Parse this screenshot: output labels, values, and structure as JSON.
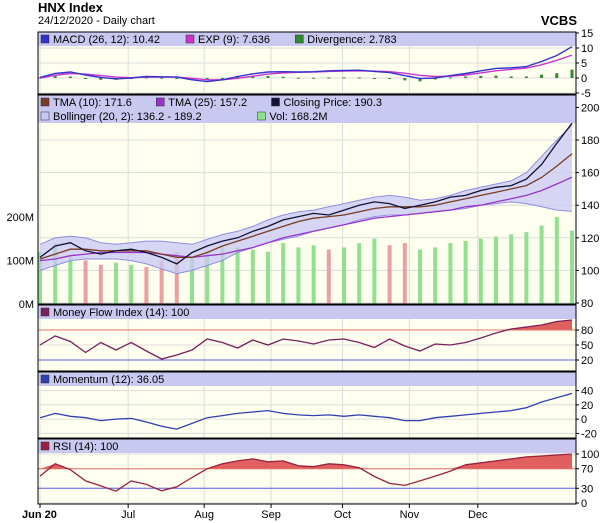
{
  "header": {
    "title": "HNX Index",
    "subtitle": "24/12/2020 - Daily chart",
    "brand": "VCBS"
  },
  "colors": {
    "legend_bg": "#c8c8f0",
    "plot_bg": "#fffff0",
    "grid": "#dcdcdc",
    "macd": "#3333cc",
    "exp": "#cc33cc",
    "divergence": "#338833",
    "tma10": "#7a3b22",
    "tma25": "#9933cc",
    "close": "#111133",
    "bollinger_fill": "#c8c8f5",
    "bollinger_line": "#8f8fe0",
    "volume": "#90e090",
    "volume_down": "#e8a0a0",
    "mfi": "#7a1f5c",
    "momentum": "#2f3fb0",
    "rsi": "#9a2040",
    "overbought_fill": "#e06060",
    "threshold_line": "#e07060",
    "oversold_line": "#6060e0"
  },
  "chart_data": [
    {
      "type": "line",
      "title": "MACD",
      "legend": [
        {
          "swatch": "macd",
          "label": "MACD (26, 12): 10.42"
        },
        {
          "swatch": "exp",
          "label": "EXP (9): 7.636"
        },
        {
          "swatch": "divergence",
          "label": "Divergence: 2.783"
        }
      ],
      "yticks": [
        15,
        10,
        5,
        0,
        -5
      ],
      "ylim": [
        -5,
        15
      ],
      "series": [
        {
          "name": "MACD (26, 12)",
          "values": [
            0.2,
            1.5,
            2.0,
            1.0,
            0.2,
            -0.3,
            0.0,
            0.5,
            0.4,
            0.3,
            -0.6,
            -1.2,
            -0.6,
            0.5,
            1.4,
            2.0,
            2.1,
            2.0,
            2.1,
            2.4,
            2.5,
            2.6,
            2.2,
            1.8,
            0.8,
            -0.2,
            0.0,
            0.8,
            1.5,
            2.4,
            3.2,
            3.4,
            3.8,
            5.5,
            7.5,
            10.42
          ]
        },
        {
          "name": "EXP (9)",
          "values": [
            0.0,
            0.9,
            1.5,
            1.3,
            0.8,
            0.3,
            0.1,
            0.3,
            0.3,
            0.3,
            -0.1,
            -0.6,
            -0.6,
            -0.1,
            0.6,
            1.3,
            1.7,
            1.9,
            2.0,
            2.2,
            2.3,
            2.4,
            2.3,
            2.1,
            1.6,
            0.9,
            0.5,
            0.6,
            1.0,
            1.7,
            2.4,
            2.9,
            3.3,
            4.4,
            5.9,
            7.636
          ]
        },
        {
          "name": "Divergence",
          "values": [
            0.2,
            0.6,
            0.5,
            -0.3,
            -0.6,
            -0.6,
            -0.1,
            0.2,
            0.1,
            0.0,
            -0.5,
            -0.6,
            0.0,
            0.6,
            0.8,
            0.7,
            0.4,
            0.1,
            0.1,
            0.2,
            0.2,
            0.2,
            -0.1,
            -0.3,
            -0.8,
            -1.1,
            -0.5,
            0.2,
            0.5,
            0.7,
            0.8,
            0.5,
            0.5,
            1.1,
            1.6,
            2.783
          ]
        }
      ]
    },
    {
      "type": "line",
      "title": "Price",
      "legend": [
        {
          "swatch": "tma10",
          "label": "TMA (10): 171.6"
        },
        {
          "swatch": "tma25",
          "label": "TMA (25): 157.2"
        },
        {
          "swatch": "close",
          "label": "Closing Price: 190.3"
        },
        {
          "swatch": "bollinger_fill",
          "label": "Bollinger (20, 2): 136.2 - 189.2"
        },
        {
          "swatch": "volume",
          "label": "Vol: 168.2M"
        }
      ],
      "yticks": [
        200,
        180,
        160,
        140,
        120,
        100,
        80
      ],
      "ylim": [
        80,
        207
      ],
      "volume_ticks": [
        "200M",
        "100M",
        "0M"
      ],
      "volume_ylim": [
        0,
        480
      ],
      "series": [
        {
          "name": "Closing Price",
          "values": [
            108,
            115,
            117,
            112,
            110,
            112,
            113,
            111,
            108,
            104,
            111,
            115,
            118,
            120,
            124,
            127,
            131,
            133,
            135,
            134,
            137,
            140,
            142,
            141,
            138,
            140,
            142,
            145,
            146,
            149,
            151,
            152,
            156,
            165,
            178,
            190.3
          ]
        },
        {
          "name": "TMA (10)",
          "values": [
            107,
            110,
            113,
            113,
            112,
            112,
            112,
            112,
            110,
            108,
            108,
            111,
            115,
            118,
            121,
            124,
            127,
            130,
            132,
            133,
            134,
            136,
            138,
            139,
            139,
            139,
            140,
            142,
            144,
            146,
            148,
            150,
            152,
            157,
            164,
            171.6
          ]
        },
        {
          "name": "TMA (25)",
          "values": [
            106,
            107,
            109,
            110,
            111,
            111,
            111,
            111,
            110,
            109,
            108,
            109,
            110,
            112,
            114,
            117,
            120,
            122,
            124,
            126,
            128,
            130,
            132,
            133,
            134,
            135,
            136,
            137,
            139,
            140,
            142,
            144,
            146,
            149,
            153,
            157.2
          ]
        },
        {
          "name": "Bollinger upper",
          "values": [
            116,
            120,
            121,
            120,
            117,
            116,
            117,
            118,
            118,
            117,
            116,
            119,
            122,
            124,
            127,
            131,
            134,
            136,
            137,
            139,
            141,
            143,
            145,
            146,
            145,
            143,
            144,
            146,
            149,
            151,
            153,
            155,
            160,
            170,
            180,
            189.2
          ]
        },
        {
          "name": "Bollinger lower",
          "values": [
            100,
            103,
            106,
            107,
            107,
            107,
            106,
            104,
            101,
            98,
            100,
            103,
            106,
            111,
            114,
            117,
            119,
            121,
            124,
            126,
            128,
            131,
            133,
            134,
            134,
            135,
            136,
            137,
            138,
            140,
            141,
            142,
            141,
            139,
            137,
            136.2
          ]
        },
        {
          "name": "Vol",
          "values": [
            120,
            140,
            110,
            100,
            90,
            95,
            90,
            85,
            100,
            120,
            110,
            120,
            130,
            130,
            125,
            120,
            140,
            130,
            135,
            125,
            130,
            140,
            150,
            135,
            140,
            125,
            130,
            140,
            145,
            150,
            155,
            160,
            165,
            180,
            200,
            168.2
          ]
        }
      ]
    },
    {
      "type": "line",
      "title": "Money Flow Index",
      "legend": [
        {
          "swatch": "mfi",
          "label": "Money Flow Index (14): 100"
        }
      ],
      "yticks": [
        80,
        50,
        20
      ],
      "threshold_labels": [
        "80",
        "50",
        "20"
      ],
      "ylim": [
        0,
        100
      ],
      "series": [
        {
          "name": "Money Flow Index (14)",
          "values": [
            50,
            68,
            57,
            35,
            55,
            40,
            55,
            38,
            22,
            30,
            40,
            62,
            55,
            44,
            60,
            50,
            62,
            58,
            52,
            60,
            62,
            55,
            45,
            62,
            48,
            38,
            52,
            50,
            55,
            64,
            74,
            82,
            86,
            90,
            97,
            100
          ]
        }
      ]
    },
    {
      "type": "line",
      "title": "Momentum",
      "legend": [
        {
          "swatch": "momentum",
          "label": "Momentum (12): 36.05"
        }
      ],
      "yticks": [
        40,
        20,
        0,
        -20
      ],
      "ylim": [
        -25,
        45
      ],
      "series": [
        {
          "name": "Momentum (12)",
          "values": [
            2,
            8,
            4,
            2,
            -2,
            0,
            1,
            -4,
            -10,
            -14,
            -6,
            2,
            5,
            8,
            10,
            12,
            8,
            6,
            5,
            6,
            4,
            6,
            4,
            2,
            -2,
            -2,
            2,
            4,
            6,
            8,
            10,
            12,
            16,
            24,
            30,
            36.05
          ]
        }
      ]
    },
    {
      "type": "line",
      "title": "RSI",
      "legend": [
        {
          "swatch": "rsi",
          "label": "RSI (14): 100"
        }
      ],
      "yticks": [
        100,
        70,
        30,
        0
      ],
      "threshold_labels": [
        "70",
        "30"
      ],
      "ylim": [
        0,
        100
      ],
      "series": [
        {
          "name": "RSI (14)",
          "values": [
            55,
            80,
            68,
            45,
            35,
            24,
            45,
            38,
            25,
            33,
            52,
            70,
            80,
            86,
            90,
            84,
            86,
            76,
            74,
            80,
            78,
            72,
            54,
            40,
            36,
            45,
            55,
            65,
            78,
            82,
            86,
            90,
            94,
            96,
            98,
            100
          ]
        }
      ]
    }
  ],
  "x_axis": {
    "labels": [
      "Jun 20",
      "Jul",
      "Aug",
      "Sep",
      "Oct",
      "Nov",
      "Dec"
    ],
    "label_index": [
      0,
      5.8,
      10.8,
      15.2,
      19.9,
      24.3,
      28.8
    ]
  }
}
